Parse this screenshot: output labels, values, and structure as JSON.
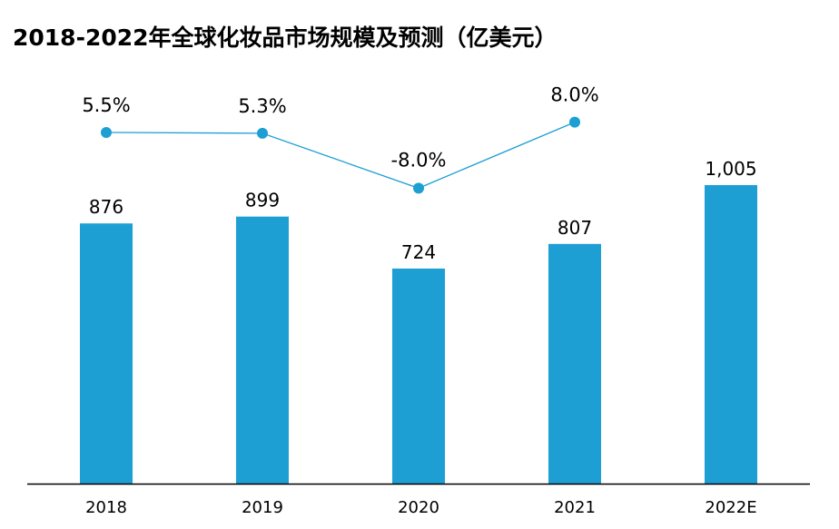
{
  "chart_data": {
    "type": "bar",
    "title": "2018-2022年全球化妆品市场规模及预测（亿美元）",
    "categories": [
      "2018",
      "2019",
      "2020",
      "2021",
      "2022E"
    ],
    "series": [
      {
        "type": "bar",
        "values": [
          876,
          899,
          724,
          807,
          1005
        ],
        "labels": [
          "876",
          "899",
          "724",
          "807",
          "1,005"
        ]
      },
      {
        "type": "line",
        "values": [
          5.5,
          5.3,
          -8.0,
          8.0,
          null
        ],
        "labels": [
          "5.5%",
          "5.3%",
          "-8.0%",
          "8.0%",
          ""
        ]
      }
    ],
    "xlabel": "",
    "ylabel": "",
    "grid": false,
    "colors": {
      "bar": "#1E9FD3",
      "line": "#1E9FD3",
      "axis": "#000000"
    }
  }
}
